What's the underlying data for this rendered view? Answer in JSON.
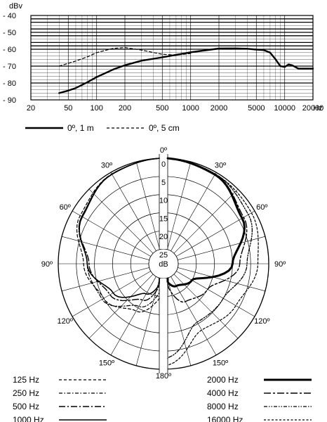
{
  "chart_data": [
    {
      "type": "line",
      "xscale": "log",
      "xlim": [
        20,
        20000
      ],
      "ylim": [
        -90,
        -40
      ],
      "ylabel": "dBv",
      "xunit": "Hz",
      "grid": true,
      "legend_position": "bottom",
      "yticks": [
        -40,
        -50,
        -60,
        -70,
        -80,
        -90
      ],
      "yticklabels": [
        "- 40",
        "- 50",
        "- 60",
        "- 70",
        "- 80",
        "- 90"
      ],
      "xticks": [
        20,
        50,
        100,
        200,
        500,
        1000,
        2000,
        5000,
        10000,
        20000
      ],
      "series": [
        {
          "name": "0º, 1 m",
          "style": "solid",
          "x": [
            40,
            50,
            60,
            80,
            100,
            150,
            200,
            300,
            500,
            1000,
            2000,
            3000,
            4000,
            5000,
            6000,
            7000,
            8000,
            9000,
            10000,
            11000,
            12000,
            14000,
            16000,
            20000
          ],
          "y": [
            -86,
            -84.5,
            -83,
            -79.5,
            -76.5,
            -72,
            -69.5,
            -66.8,
            -64.8,
            -61.8,
            -59.6,
            -59.5,
            -59.7,
            -60.2,
            -60.5,
            -62,
            -66,
            -70,
            -70.5,
            -69,
            -69.5,
            -71.5,
            -71.5,
            -71.5
          ]
        },
        {
          "name": "0º, 5 cm",
          "style": "dashed",
          "x": [
            40,
            60,
            80,
            100,
            150,
            200,
            300,
            500,
            700,
            1000
          ],
          "y": [
            -70,
            -67,
            -64.5,
            -62,
            -59.5,
            -59,
            -60.5,
            -63,
            -63.5,
            -62.5
          ]
        }
      ]
    },
    {
      "type": "polar",
      "unit": "dB",
      "rings": [
        0,
        5,
        10,
        15,
        20,
        25
      ],
      "ring_labels": [
        "0",
        "5",
        "10",
        "15",
        "20",
        "25"
      ],
      "angle_labels": [
        "0º",
        "30º",
        "60º",
        "90º",
        "120º",
        "150º",
        "180º",
        "30º",
        "60º",
        "90º",
        "120º",
        "150º"
      ],
      "angle_label_values": [
        0,
        30,
        60,
        90,
        120,
        150,
        180,
        -30,
        -60,
        -90,
        -120,
        -150
      ],
      "angles": [
        0,
        30,
        60,
        90,
        120,
        150,
        180
      ],
      "left_half": [
        {
          "name": "125 Hz",
          "style": "dashed",
          "values": [
            0,
            0.5,
            2.5,
            7,
            10,
            14,
            20
          ]
        },
        {
          "name": "250 Hz",
          "style": "dash-dot",
          "values": [
            0,
            0.5,
            3,
            8,
            9.5,
            15.5,
            22
          ]
        },
        {
          "name": "500 Hz",
          "style": "long-dash-dot",
          "values": [
            0,
            0.6,
            3,
            8.5,
            12,
            17.5,
            25
          ]
        },
        {
          "name": "1000 Hz",
          "style": "solid-thin",
          "values": [
            0,
            0.6,
            3.2,
            8,
            13,
            19.5,
            25
          ]
        }
      ],
      "right_half": [
        {
          "name": "2000 Hz",
          "style": "solid-thick",
          "values": [
            0,
            0.7,
            4,
            10,
            20,
            22,
            25
          ]
        },
        {
          "name": "4000 Hz",
          "style": "long-dash-short",
          "values": [
            0,
            0.6,
            3.5,
            8,
            15,
            17,
            25
          ]
        },
        {
          "name": "8000 Hz",
          "style": "dash-dot-dot",
          "values": [
            0,
            0.5,
            2,
            6,
            10,
            10.5,
            3
          ]
        },
        {
          "name": "16000 Hz",
          "style": "dashed-short",
          "values": [
            0,
            0.5,
            1,
            3,
            6,
            8,
            1
          ]
        }
      ]
    }
  ],
  "legend_top": [
    {
      "label": "0º, 1 m",
      "style": "solid"
    },
    {
      "label": "0º, 5 cm",
      "style": "dashed"
    }
  ],
  "legend_polar": [
    {
      "label": "125  Hz",
      "style": "dashed"
    },
    {
      "label": "250  Hz",
      "style": "dash-dot"
    },
    {
      "label": "500  Hz",
      "style": "long-dash-dot"
    },
    {
      "label": "1000  Hz",
      "style": "solid-thin"
    },
    {
      "label": "2000  Hz",
      "style": "solid-thick"
    },
    {
      "label": "4000  Hz",
      "style": "long-dash-short"
    },
    {
      "label": "8000  Hz",
      "style": "dash-dot-dot"
    },
    {
      "label": "16000  Hz",
      "style": "dashed-short"
    }
  ]
}
